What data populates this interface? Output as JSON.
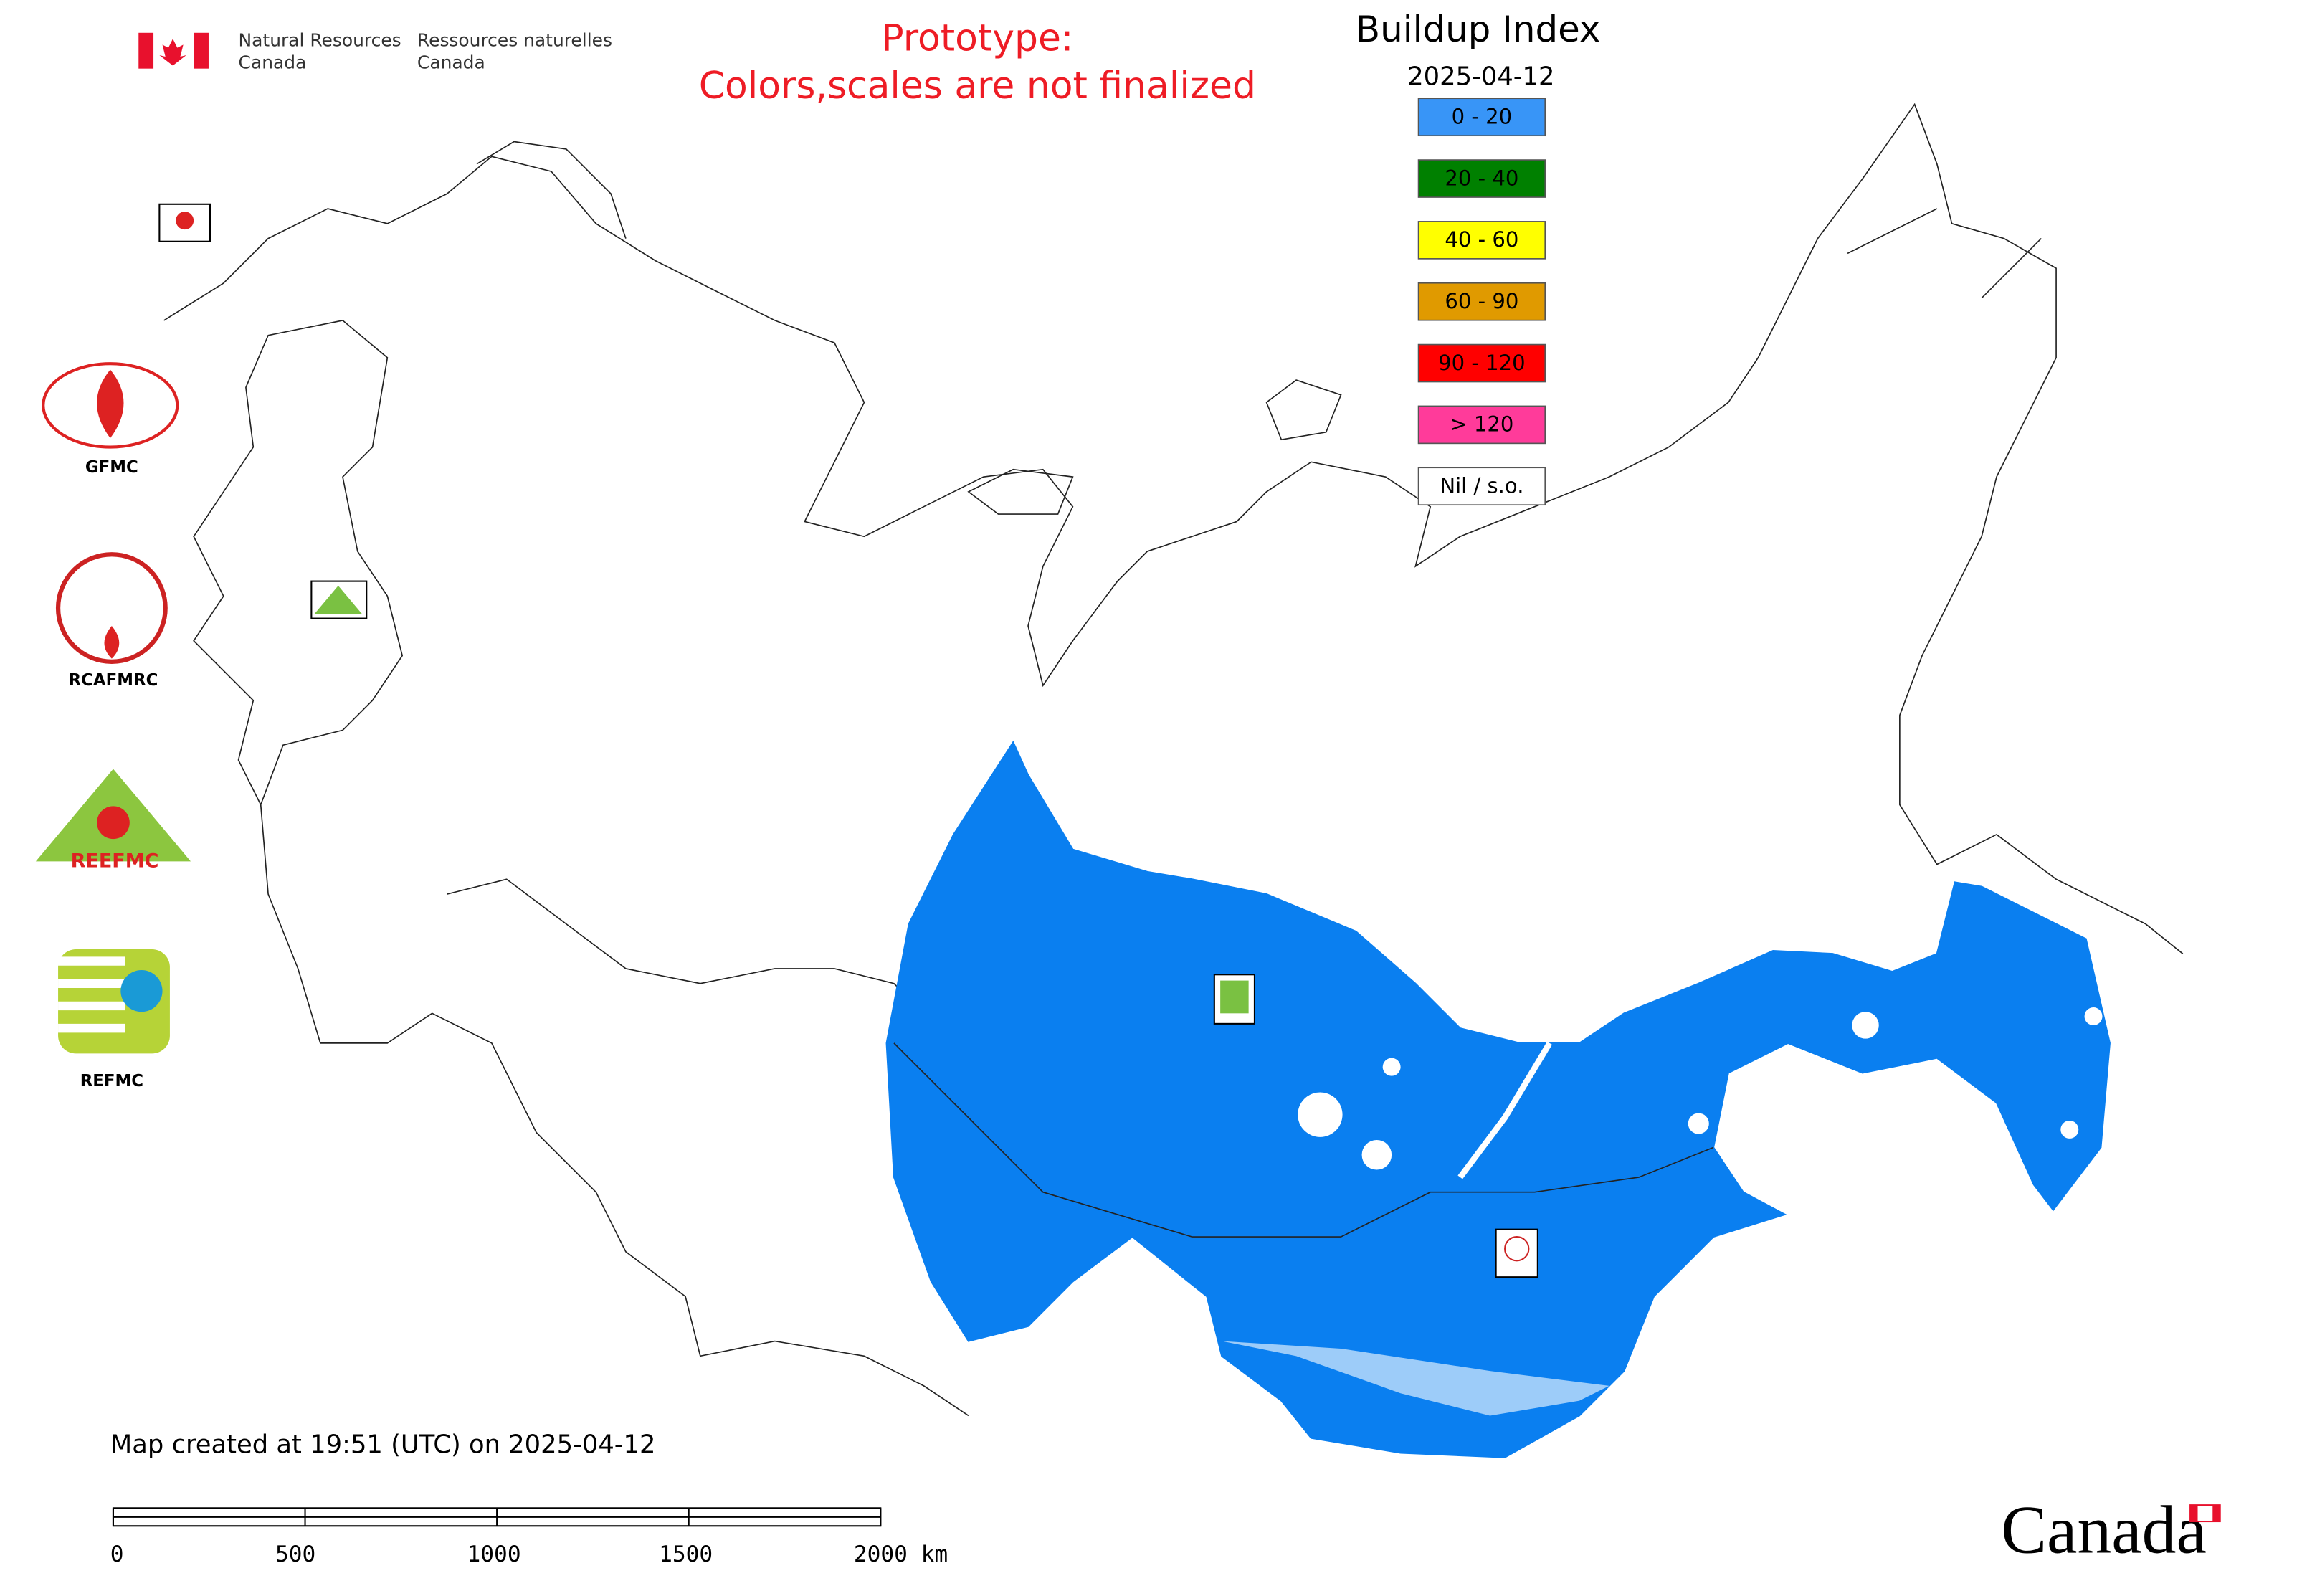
{
  "header": {
    "department_en": [
      "Natural Resources",
      "Canada"
    ],
    "department_fr": [
      "Ressources naturelles",
      "Canada"
    ],
    "notice": [
      "Prototype:",
      "Colors,scales are not finalized"
    ]
  },
  "legend": {
    "title": "Buildup Index",
    "date": "2025-04-12",
    "items": [
      {
        "label": "0 - 20",
        "color": "#3895f7"
      },
      {
        "label": "20 - 40",
        "color": "#008000"
      },
      {
        "label": "40 - 60",
        "color": "#ffff00"
      },
      {
        "label": "60 - 90",
        "color": "#e09a00"
      },
      {
        "label": "90 - 120",
        "color": "#ff0000"
      },
      {
        "label": "> 120",
        "color": "#ff3b9a"
      },
      {
        "label": "Nil / s.o.",
        "color": "#ffffff"
      }
    ]
  },
  "logos": [
    {
      "label": "GFMC"
    },
    {
      "label": "RCAFMRC"
    },
    {
      "label": "REEFMC"
    },
    {
      "label": "REFMC"
    }
  ],
  "footer": {
    "created": "Map created at 19:51 (UTC) on 2025-04-12",
    "wordmark": "Canada"
  },
  "scale_bar": {
    "labels": [
      "0",
      "500",
      "1000",
      "1500",
      "2000 km"
    ]
  }
}
